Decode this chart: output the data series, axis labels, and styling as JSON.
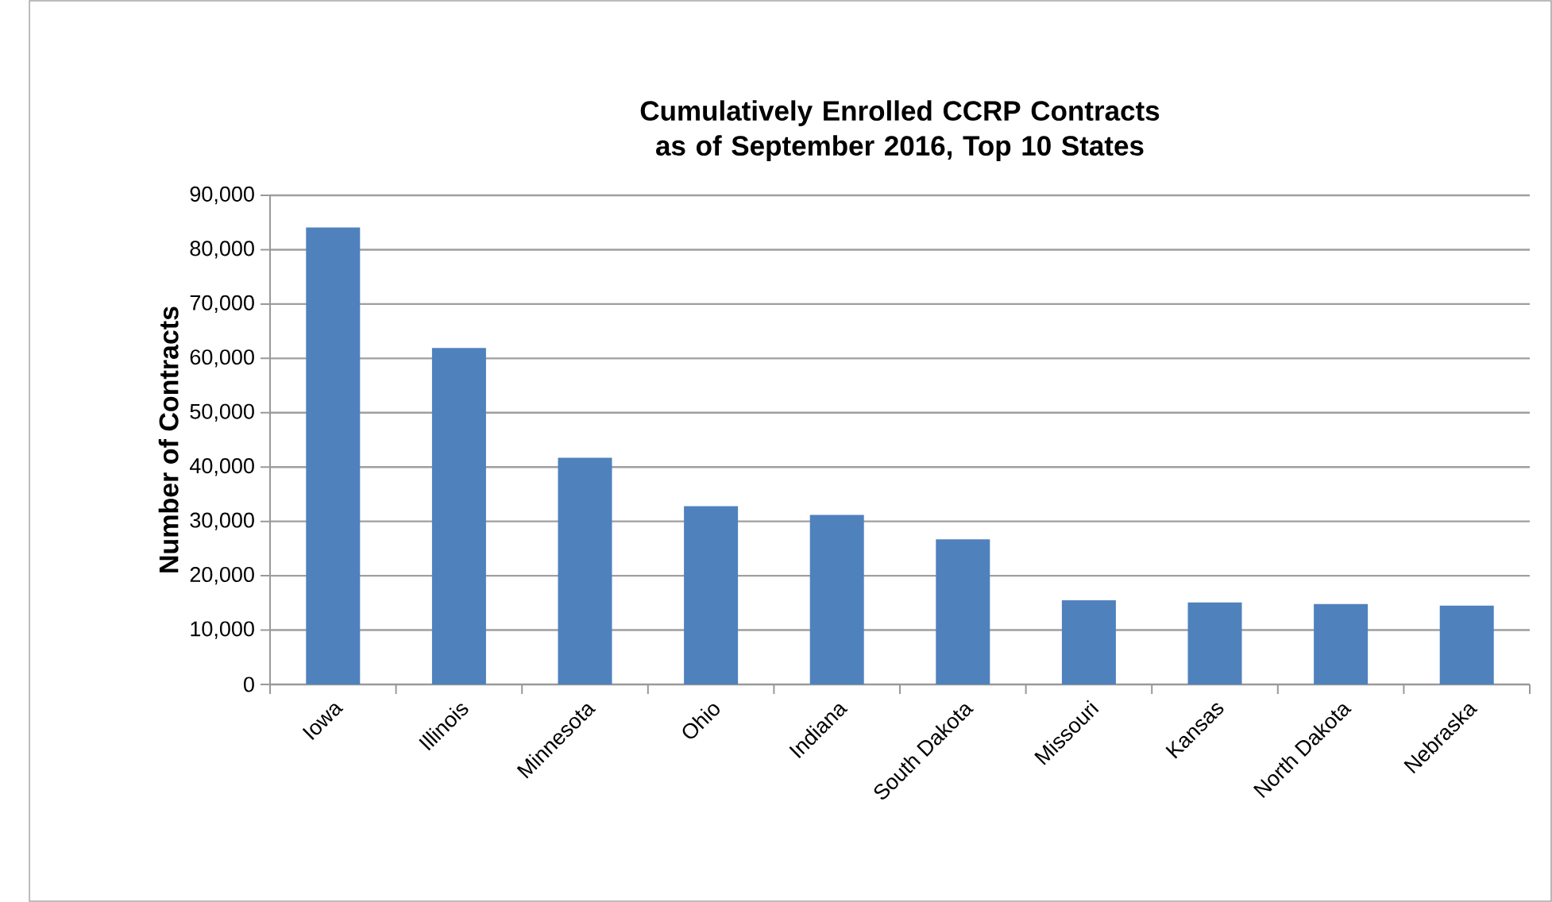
{
  "chart_data": {
    "type": "bar",
    "title": "Cumulatively Enrolled CCRP Contracts as of September 2016, Top 10 States",
    "ylabel": "Number of Contracts",
    "categories": [
      "Iowa",
      "Illinois",
      "Minnesota",
      "Ohio",
      "Indiana",
      "South Dakota",
      "Missouri",
      "Kansas",
      "North Dakota",
      "Nebraska"
    ],
    "values": [
      84100,
      61900,
      41700,
      32800,
      31200,
      26700,
      15500,
      15100,
      14800,
      14500
    ],
    "color": "#4f81bd",
    "ylim": [
      0,
      90000
    ],
    "yticks": [
      {
        "value": 0,
        "label": "0"
      },
      {
        "value": 10000,
        "label": "10,000"
      },
      {
        "value": 20000,
        "label": "20,000"
      },
      {
        "value": 30000,
        "label": "30,000"
      },
      {
        "value": 40000,
        "label": "40,000"
      },
      {
        "value": 50000,
        "label": "50,000"
      },
      {
        "value": 60000,
        "label": "60,000"
      },
      {
        "value": 70000,
        "label": "70,000"
      },
      {
        "value": 80000,
        "label": "80,000"
      },
      {
        "value": 90000,
        "label": "90,000"
      }
    ],
    "grid": "y"
  }
}
